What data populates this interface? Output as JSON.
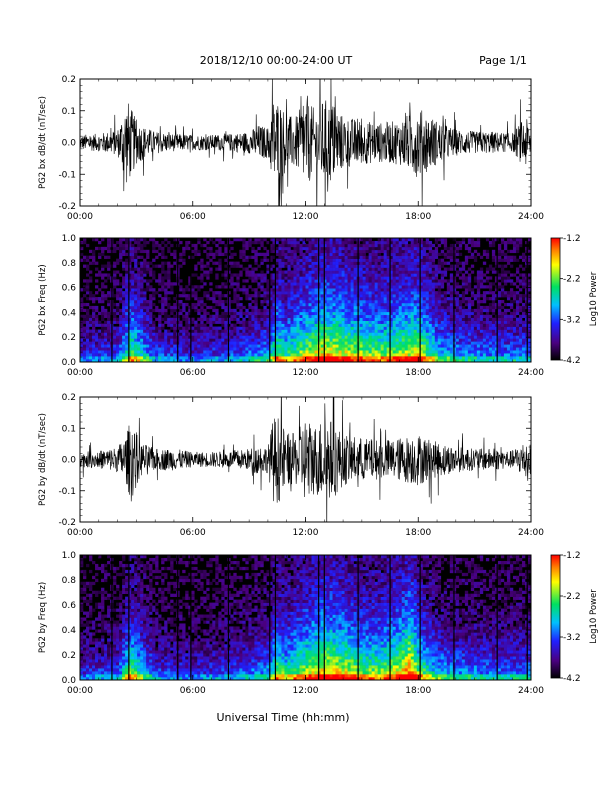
{
  "header": {
    "title": "2018/12/10   00:00-24:00 UT",
    "page": "Page 1/1"
  },
  "xlabel": "Universal Time (hh:mm)",
  "colorbar": {
    "label": "Log10 Power",
    "ticks": [
      "-1.2",
      "-2.2",
      "-3.2",
      "-4.2"
    ],
    "range": [
      -4.2,
      -1.2
    ],
    "colors": [
      "#000000",
      "#4a0080",
      "#2020ff",
      "#00c0ff",
      "#00e060",
      "#ffff00",
      "#ff8000",
      "#ff0000"
    ]
  },
  "chart_data": [
    {
      "type": "line",
      "panel": "bx-waveform",
      "ylabel": "PG2 bx dB/dt (nT/sec)",
      "ylim": [
        -0.2,
        0.2
      ],
      "yticks": [
        "0.2",
        "0.1",
        "0.0",
        "-0.1",
        "-0.2"
      ],
      "xlim": [
        "00:00",
        "24:00"
      ],
      "xticks": [
        "00:00",
        "06:00",
        "12:00",
        "18:00",
        "24:00"
      ],
      "envelope_x_hours": [
        0,
        1,
        2,
        2.5,
        3,
        3.5,
        4,
        5,
        6,
        7,
        8,
        9,
        9.5,
        10,
        10.3,
        10.6,
        11,
        11.5,
        12,
        12.5,
        13,
        13.5,
        14,
        15,
        16,
        17,
        18,
        19,
        20,
        21,
        22,
        23,
        23.7,
        24
      ],
      "envelope_amplitude": [
        0.035,
        0.04,
        0.06,
        0.2,
        0.1,
        0.07,
        0.05,
        0.04,
        0.035,
        0.035,
        0.04,
        0.05,
        0.08,
        0.07,
        0.2,
        0.2,
        0.12,
        0.12,
        0.2,
        0.15,
        0.2,
        0.18,
        0.12,
        0.1,
        0.09,
        0.1,
        0.16,
        0.1,
        0.06,
        0.05,
        0.05,
        0.04,
        0.12,
        0.06
      ]
    },
    {
      "type": "heatmap",
      "panel": "bx-spectrogram",
      "ylabel": "PG2 bx Freq (Hz)",
      "ylim": [
        0.0,
        1.0
      ],
      "yticks": [
        "1.0",
        "0.8",
        "0.6",
        "0.4",
        "0.2",
        "0.0"
      ],
      "xlim": [
        "00:00",
        "24:00"
      ],
      "xticks": [
        "00:00",
        "06:00",
        "12:00",
        "18:00",
        "24:00"
      ],
      "activity_x_hours": [
        0,
        2,
        2.7,
        4,
        6,
        8,
        10,
        10.5,
        11,
        12,
        13,
        14,
        15,
        16,
        17,
        18,
        19,
        20,
        22,
        24
      ],
      "activity_level": [
        0.3,
        0.35,
        0.7,
        0.35,
        0.3,
        0.35,
        0.45,
        0.7,
        0.6,
        0.75,
        0.85,
        0.8,
        0.75,
        0.7,
        0.75,
        0.8,
        0.55,
        0.45,
        0.4,
        0.4
      ],
      "gap_lines_hours": [
        1.7,
        2.6,
        5.2,
        5.9,
        7.9,
        10.1,
        10.4,
        12.7,
        13.0,
        14.8,
        16.5,
        18.1,
        19.9,
        22.2,
        23.8
      ]
    },
    {
      "type": "line",
      "panel": "by-waveform",
      "ylabel": "PG2 by dB/dt (nT/sec)",
      "ylim": [
        -0.2,
        0.2
      ],
      "yticks": [
        "0.2",
        "0.1",
        "0.0",
        "-0.1",
        "-0.2"
      ],
      "xlim": [
        "00:00",
        "24:00"
      ],
      "xticks": [
        "00:00",
        "06:00",
        "12:00",
        "18:00",
        "24:00"
      ],
      "envelope_x_hours": [
        0,
        1,
        2,
        2.5,
        2.7,
        3.2,
        4,
        5,
        6,
        7,
        8,
        9,
        9.5,
        10,
        10.3,
        10.6,
        11,
        11.5,
        12,
        12.5,
        13,
        13.5,
        14,
        15,
        16,
        17,
        18,
        19,
        20,
        21,
        22,
        23,
        23.8,
        24
      ],
      "envelope_amplitude": [
        0.035,
        0.04,
        0.06,
        0.12,
        0.2,
        0.08,
        0.05,
        0.05,
        0.035,
        0.035,
        0.04,
        0.05,
        0.07,
        0.06,
        0.2,
        0.2,
        0.12,
        0.12,
        0.2,
        0.16,
        0.2,
        0.18,
        0.12,
        0.1,
        0.09,
        0.1,
        0.12,
        0.08,
        0.06,
        0.05,
        0.05,
        0.04,
        0.1,
        0.06
      ]
    },
    {
      "type": "heatmap",
      "panel": "by-spectrogram",
      "ylabel": "PG2 by Freq (Hz)",
      "ylim": [
        0.0,
        1.0
      ],
      "yticks": [
        "1.0",
        "0.8",
        "0.6",
        "0.4",
        "0.2",
        "0.0"
      ],
      "xlim": [
        "00:00",
        "24:00"
      ],
      "xticks": [
        "00:00",
        "06:00",
        "12:00",
        "18:00",
        "24:00"
      ],
      "activity_x_hours": [
        0,
        2,
        2.7,
        4,
        6,
        8,
        10,
        10.5,
        11,
        12,
        13,
        14,
        15,
        16,
        17,
        17.6,
        18,
        19,
        20,
        22,
        24
      ],
      "activity_level": [
        0.3,
        0.35,
        0.7,
        0.35,
        0.3,
        0.35,
        0.45,
        0.7,
        0.6,
        0.75,
        0.85,
        0.8,
        0.7,
        0.7,
        0.8,
        0.95,
        0.7,
        0.5,
        0.45,
        0.4,
        0.4
      ],
      "gap_lines_hours": [
        1.7,
        2.6,
        5.2,
        5.9,
        7.9,
        10.1,
        10.4,
        12.7,
        13.0,
        14.8,
        16.5,
        18.1,
        19.9,
        22.2,
        23.8
      ]
    }
  ]
}
